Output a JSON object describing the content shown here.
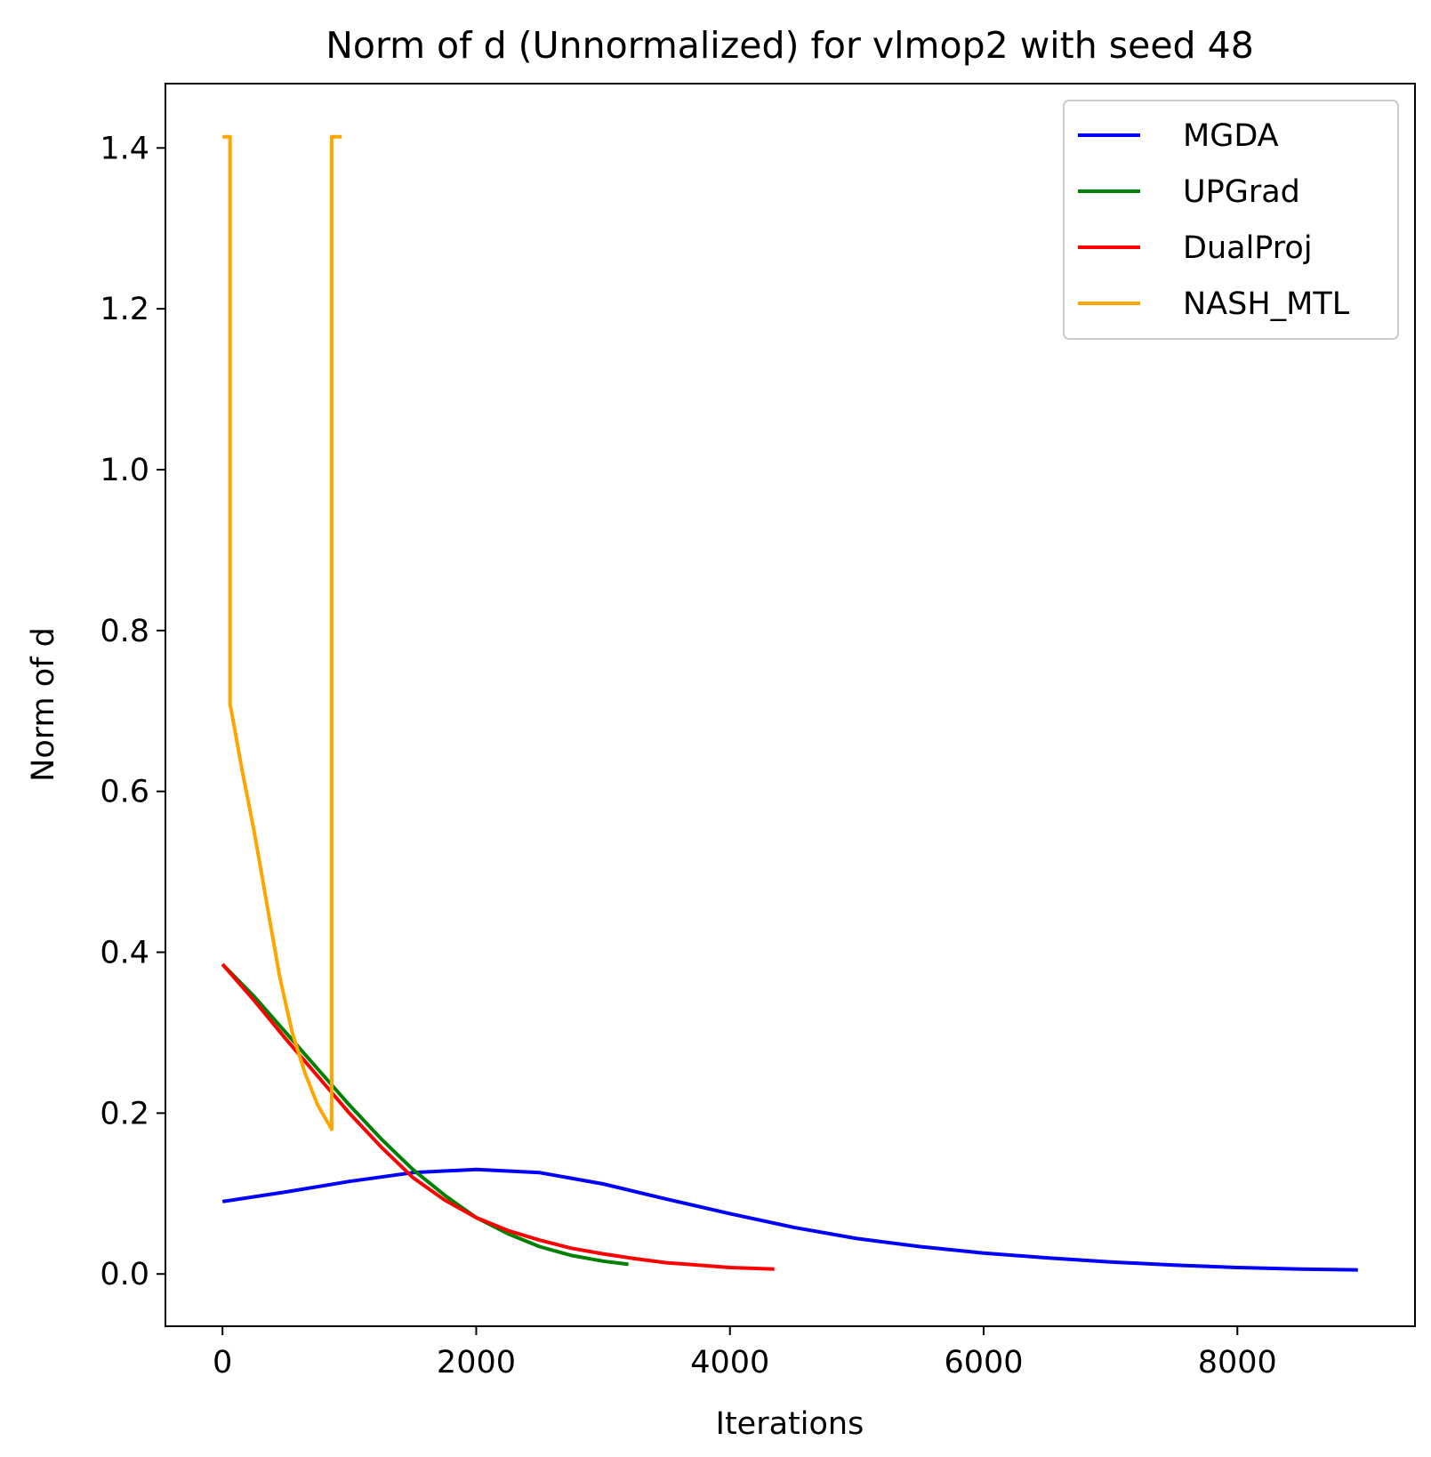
{
  "chart_data": {
    "type": "line",
    "title": "Norm of d (Unnormalized) for vlmop2 with seed 48",
    "xlabel": "Iterations",
    "ylabel": "Norm of d",
    "xlim": [
      -450,
      9400
    ],
    "ylim": [
      -0.065,
      1.48
    ],
    "xticks": [
      0,
      2000,
      4000,
      6000,
      8000
    ],
    "xtick_labels": [
      "0",
      "2000",
      "4000",
      "6000",
      "8000"
    ],
    "yticks": [
      0.0,
      0.2,
      0.4,
      0.6,
      0.8,
      1.0,
      1.2,
      1.4
    ],
    "ytick_labels": [
      "0.0",
      "0.2",
      "0.4",
      "0.6",
      "0.8",
      "1.0",
      "1.2",
      "1.4"
    ],
    "grid": false,
    "legend_position": "top-right",
    "series": [
      {
        "name": "MGDA",
        "color": "#0000ff",
        "x": [
          0,
          500,
          1000,
          1500,
          2000,
          2500,
          3000,
          3500,
          4000,
          4500,
          5000,
          5500,
          6000,
          6500,
          7000,
          7500,
          8000,
          8500,
          8950
        ],
        "y": [
          0.09,
          0.102,
          0.115,
          0.126,
          0.13,
          0.126,
          0.112,
          0.093,
          0.075,
          0.058,
          0.044,
          0.034,
          0.026,
          0.02,
          0.015,
          0.011,
          0.008,
          0.006,
          0.005
        ]
      },
      {
        "name": "UPGrad",
        "color": "#008000",
        "x": [
          0,
          250,
          500,
          750,
          1000,
          1250,
          1500,
          1750,
          2000,
          2250,
          2500,
          2750,
          3000,
          3200
        ],
        "y": [
          0.385,
          0.345,
          0.3,
          0.255,
          0.21,
          0.168,
          0.13,
          0.098,
          0.07,
          0.05,
          0.034,
          0.023,
          0.016,
          0.012
        ]
      },
      {
        "name": "DualProj",
        "color": "#ff0000",
        "x": [
          0,
          250,
          500,
          750,
          1000,
          1250,
          1500,
          1750,
          2000,
          2250,
          2500,
          2750,
          3000,
          3250,
          3500,
          3750,
          4000,
          4350
        ],
        "y": [
          0.385,
          0.34,
          0.292,
          0.246,
          0.2,
          0.158,
          0.12,
          0.092,
          0.07,
          0.054,
          0.042,
          0.032,
          0.025,
          0.019,
          0.014,
          0.011,
          0.008,
          0.006
        ]
      },
      {
        "name": "NASH_MTL",
        "color": "#ffa500",
        "x": [
          0,
          60,
          60,
          70,
          150,
          250,
          350,
          450,
          550,
          650,
          750,
          860,
          860,
          870,
          940
        ],
        "y": [
          1.414,
          1.414,
          0.707,
          0.7,
          0.63,
          0.55,
          0.46,
          0.37,
          0.3,
          0.25,
          0.21,
          0.18,
          1.414,
          1.414,
          1.414
        ]
      }
    ]
  }
}
